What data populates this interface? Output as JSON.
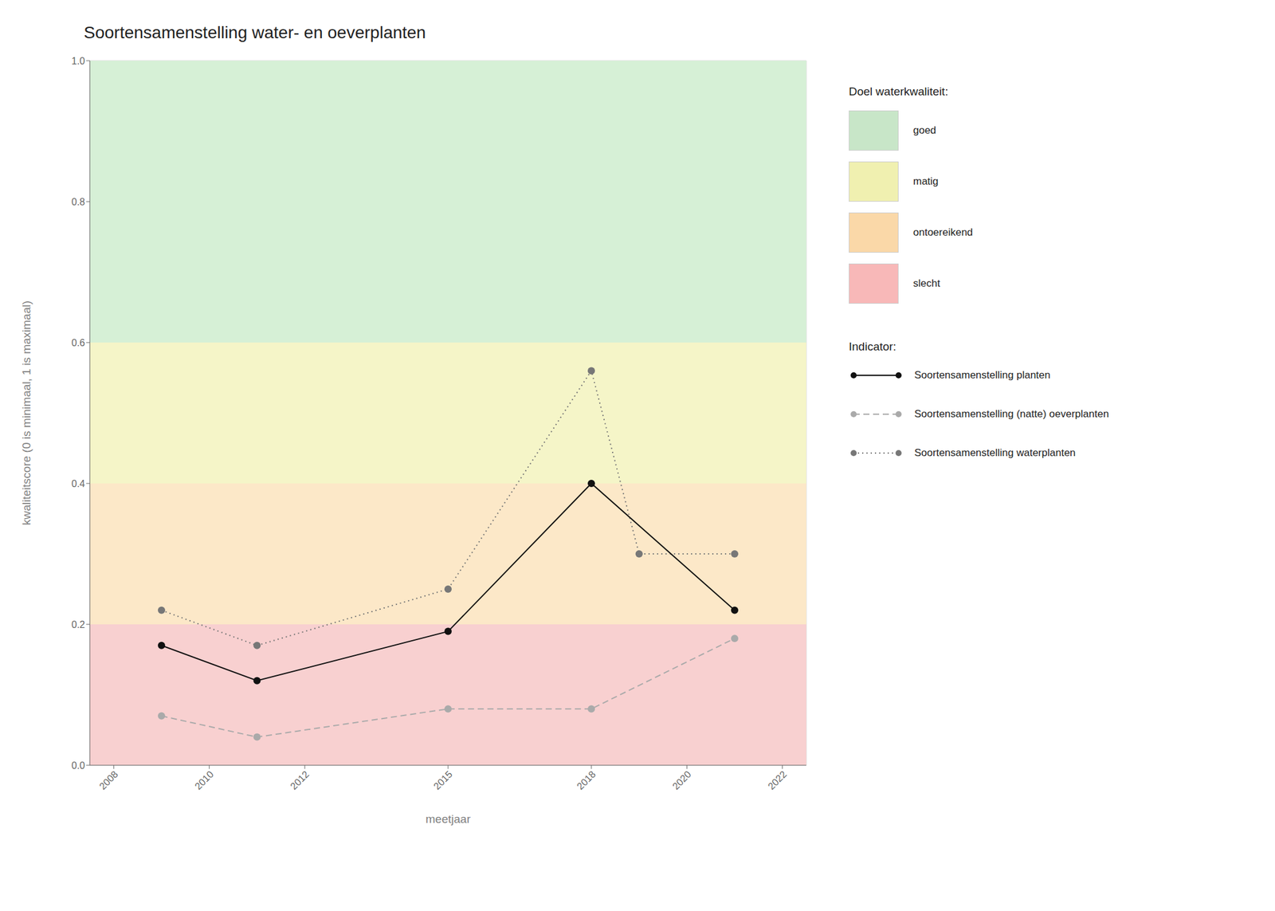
{
  "chart_data": {
    "type": "line",
    "title": "Soortensamenstelling water- en oeverplanten",
    "x_label": "meetjaar",
    "y_label": "kwaliteitscore (0 is minimaal, 1 is maximaal)",
    "xlim": [
      2007.5,
      2022.5
    ],
    "ylim": [
      0.0,
      1.0
    ],
    "xticks": [
      2008,
      2010,
      2012,
      2015,
      2018,
      2020,
      2022
    ],
    "yticks": [
      {
        "value": 0,
        "label": "0.0"
      },
      0.2,
      0.4,
      0.6,
      0.8,
      {
        "value": 1,
        "label": "1.0"
      }
    ],
    "grid": true,
    "legend_titles": {
      "bands": "Doel waterkwaliteit:",
      "series": "Indicator:"
    },
    "bands": [
      {
        "name": "goed",
        "from": 0.6,
        "to": 1.0,
        "color": "#d6f0d6",
        "legend_color": "#c8e6c8"
      },
      {
        "name": "matig",
        "from": 0.4,
        "to": 0.6,
        "color": "#f5f5c8",
        "legend_color": "#f0f0b0"
      },
      {
        "name": "ontoereikend",
        "from": 0.2,
        "to": 0.4,
        "color": "#fce8c8",
        "legend_color": "#fad8a8"
      },
      {
        "name": "slecht",
        "from": 0.0,
        "to": 0.2,
        "color": "#f8d0d0",
        "legend_color": "#f8b8b8"
      }
    ],
    "series": [
      {
        "name": "Soortensamenstelling planten",
        "color": "#111111",
        "line_style": "solid",
        "marker": "o",
        "x": [
          2009,
          2011,
          2015,
          2018,
          2021
        ],
        "values": [
          0.17,
          0.12,
          0.19,
          0.4,
          0.22
        ]
      },
      {
        "name": "Soortensamenstelling (natte) oeverplanten",
        "color": "#aaaaaa",
        "line_style": "dashed",
        "marker": "o",
        "x": [
          2009,
          2011,
          2015,
          2018,
          2021
        ],
        "values": [
          0.07,
          0.04,
          0.08,
          0.08,
          0.18
        ]
      },
      {
        "name": "Soortensamenstelling waterplanten",
        "color": "#777777",
        "line_style": "dotted",
        "marker": "o",
        "x": [
          2009,
          2011,
          2015,
          2018,
          2019,
          2021
        ],
        "values": [
          0.22,
          0.17,
          0.25,
          0.56,
          0.3,
          0.3
        ]
      }
    ]
  }
}
